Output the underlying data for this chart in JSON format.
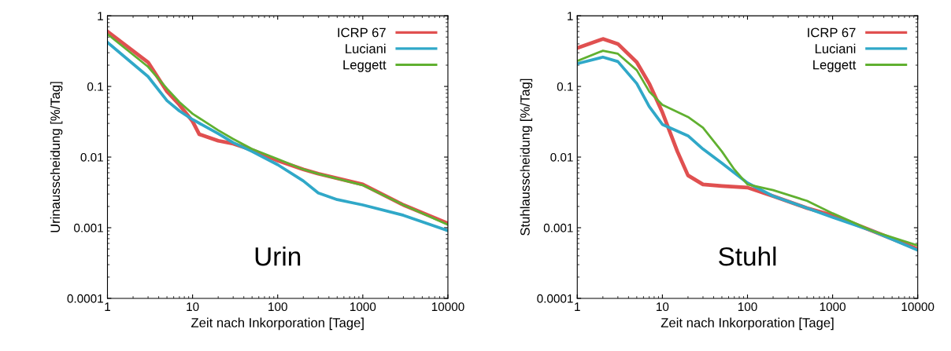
{
  "chart_data": [
    {
      "type": "line",
      "xlabel": "Zeit nach Inkorporation [Tage]",
      "ylabel": "Urinausscheidung [%/Tag]",
      "annotations": [
        "Urin"
      ],
      "log": "xy",
      "xlim": [
        1,
        10000
      ],
      "ylim": [
        0.0001,
        1
      ],
      "xticks": [
        1,
        10,
        100,
        1000,
        10000
      ],
      "yticks": [
        0.0001,
        0.001,
        0.01,
        0.1,
        1
      ],
      "grid": false,
      "legend": "top right",
      "marker": "none",
      "line_style": "solid",
      "series": [
        {
          "name": "ICRP 67",
          "color": "#e05050",
          "x": [
            1,
            3,
            5,
            7,
            10,
            12,
            20,
            30,
            50,
            100,
            200,
            300,
            1000,
            3000,
            10000
          ],
          "values": [
            0.6,
            0.22,
            0.085,
            0.055,
            0.032,
            0.021,
            0.017,
            0.0155,
            0.0126,
            0.0089,
            0.0067,
            0.0058,
            0.0041,
            0.0021,
            0.00115
          ]
        },
        {
          "name": "Luciani",
          "color": "#30a8c8",
          "x": [
            1,
            3,
            5,
            7,
            10,
            20,
            30,
            50,
            100,
            200,
            300,
            500,
            1000,
            3000,
            10000
          ],
          "values": [
            0.42,
            0.138,
            0.063,
            0.045,
            0.034,
            0.0215,
            0.016,
            0.012,
            0.0078,
            0.0046,
            0.0031,
            0.0025,
            0.0021,
            0.0015,
            0.00091
          ]
        },
        {
          "name": "Leggett",
          "color": "#60b030",
          "x": [
            1,
            3,
            5,
            7,
            10,
            20,
            30,
            50,
            100,
            200,
            300,
            1000,
            3000,
            10000
          ],
          "values": [
            0.55,
            0.19,
            0.093,
            0.06,
            0.041,
            0.024,
            0.018,
            0.013,
            0.0094,
            0.0067,
            0.0058,
            0.004,
            0.0021,
            0.0011
          ]
        }
      ]
    },
    {
      "type": "line",
      "xlabel": "Zeit nach Inkorporation [Tage]",
      "ylabel": "Stuhlausscheidung [%/Tag]",
      "annotations": [
        "Stuhl"
      ],
      "log": "xy",
      "xlim": [
        1,
        10000
      ],
      "ylim": [
        0.0001,
        1
      ],
      "xticks": [
        1,
        10,
        100,
        1000,
        10000
      ],
      "yticks": [
        0.0001,
        0.001,
        0.01,
        0.1,
        1
      ],
      "grid": false,
      "legend": "top right",
      "marker": "none",
      "line_style": "solid",
      "series": [
        {
          "name": "ICRP 67",
          "color": "#e05050",
          "x": [
            1,
            2,
            3,
            5,
            7,
            10,
            15,
            20,
            30,
            50,
            100,
            200,
            500,
            1000,
            3000,
            10000
          ],
          "values": [
            0.35,
            0.47,
            0.4,
            0.22,
            0.11,
            0.043,
            0.012,
            0.0055,
            0.0041,
            0.0039,
            0.0037,
            0.0028,
            0.0019,
            0.0015,
            0.00089,
            0.0005
          ]
        },
        {
          "name": "Luciani",
          "color": "#30a8c8",
          "x": [
            1,
            2,
            3,
            5,
            7,
            10,
            20,
            30,
            50,
            100,
            200,
            500,
            1000,
            3000,
            10000
          ],
          "values": [
            0.21,
            0.26,
            0.225,
            0.11,
            0.052,
            0.029,
            0.02,
            0.013,
            0.0082,
            0.0043,
            0.0028,
            0.0019,
            0.0014,
            0.00089,
            0.00048
          ]
        },
        {
          "name": "Leggett",
          "color": "#60b030",
          "x": [
            1,
            2,
            3,
            5,
            7,
            10,
            20,
            30,
            50,
            70,
            100,
            200,
            500,
            1000,
            3000,
            10000
          ],
          "values": [
            0.23,
            0.32,
            0.29,
            0.17,
            0.085,
            0.055,
            0.037,
            0.026,
            0.012,
            0.0067,
            0.0041,
            0.0034,
            0.0024,
            0.0016,
            0.00089,
            0.00056
          ]
        }
      ]
    }
  ]
}
